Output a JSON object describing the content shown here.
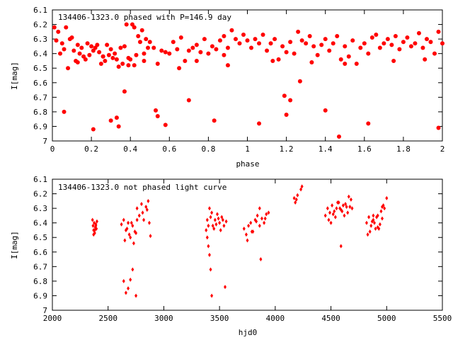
{
  "chart_data": [
    {
      "type": "scatter",
      "title": "134406-1323.0 phased with P=146.9 day",
      "xlabel": "phase",
      "ylabel": "I[mag]",
      "xlim": [
        0,
        2
      ],
      "ylim": [
        6.1,
        7
      ],
      "y_inverted": true,
      "grid": false,
      "marker_color": "#ff0000",
      "marker": "filled-circle",
      "x_ticks": [
        "0",
        "0.2",
        "0.4",
        "0.6",
        "0.8",
        "1",
        "1.2",
        "1.4",
        "1.6",
        "1.8",
        "2"
      ],
      "y_ticks": [
        "6.1",
        "6.2",
        "6.3",
        "6.4",
        "6.5",
        "6.6",
        "6.7",
        "6.8",
        "6.9",
        "7"
      ],
      "series": [
        {
          "x": [
            0.01,
            0.02,
            0.03,
            0.04,
            0.05,
            0.06,
            0.07,
            0.08,
            0.09,
            0.1,
            0.11,
            0.12,
            0.13,
            0.14,
            0.15,
            0.16,
            0.17,
            0.18,
            0.19,
            0.2,
            0.21,
            0.22,
            0.23,
            0.24,
            0.25,
            0.26,
            0.27,
            0.28,
            0.29,
            0.3,
            0.31,
            0.32,
            0.33,
            0.34,
            0.35,
            0.36,
            0.37,
            0.38,
            0.39,
            0.4,
            0.41,
            0.42,
            0.43,
            0.44,
            0.45,
            0.46,
            0.47,
            0.48,
            0.49,
            0.5,
            0.52,
            0.54,
            0.56,
            0.58,
            0.6,
            0.62,
            0.64,
            0.66,
            0.68,
            0.7,
            0.72,
            0.74,
            0.76,
            0.78,
            0.8,
            0.82,
            0.84,
            0.86,
            0.88,
            0.9,
            0.92,
            0.94,
            0.96,
            0.98,
            1.0,
            1.02,
            1.04,
            1.06,
            1.08,
            1.1,
            1.12,
            1.14,
            1.16,
            1.18,
            1.2,
            1.22,
            1.24,
            1.26,
            1.28,
            1.3,
            1.32,
            1.34,
            1.36,
            1.38,
            1.4,
            1.42,
            1.44,
            1.46,
            1.48,
            1.5,
            1.52,
            1.54,
            1.56,
            1.58,
            1.6,
            1.62,
            1.64,
            1.66,
            1.68,
            1.7,
            1.72,
            1.74,
            1.76,
            1.78,
            1.8,
            1.82,
            1.84,
            1.86,
            1.88,
            1.9,
            1.92,
            1.94,
            1.96,
            1.98,
            2.0,
            0.06,
            0.21,
            0.3,
            0.33,
            0.34,
            0.37,
            0.39,
            0.53,
            0.54,
            0.58,
            0.7,
            0.83,
            0.88,
            1.06,
            1.19,
            1.2,
            1.22,
            1.27,
            1.4,
            1.47,
            1.62,
            1.98,
            0.13,
            0.26,
            0.42,
            0.47,
            0.65,
            0.74,
            0.9,
            1.13,
            1.33,
            1.5,
            1.75,
            1.91
          ],
          "y": [
            6.22,
            6.31,
            6.25,
            6.4,
            6.33,
            6.37,
            6.22,
            6.5,
            6.3,
            6.29,
            6.38,
            6.45,
            6.34,
            6.4,
            6.36,
            6.42,
            6.44,
            6.33,
            6.41,
            6.35,
            6.38,
            6.36,
            6.34,
            6.39,
            6.47,
            6.42,
            6.45,
            6.34,
            6.41,
            6.37,
            6.43,
            6.4,
            6.44,
            6.49,
            6.36,
            6.47,
            6.35,
            6.2,
            6.43,
            6.44,
            6.2,
            6.22,
            6.41,
            6.28,
            6.32,
            6.24,
            6.4,
            6.3,
            6.36,
            6.32,
            6.36,
            6.47,
            6.38,
            6.39,
            6.4,
            6.32,
            6.37,
            6.29,
            6.45,
            6.38,
            6.36,
            6.34,
            6.39,
            6.3,
            6.4,
            6.35,
            6.37,
            6.31,
            6.28,
            6.36,
            6.24,
            6.3,
            6.33,
            6.27,
            6.31,
            6.36,
            6.3,
            6.33,
            6.27,
            6.38,
            6.33,
            6.3,
            6.44,
            6.35,
            6.39,
            6.32,
            6.4,
            6.25,
            6.31,
            6.33,
            6.28,
            6.35,
            6.41,
            6.34,
            6.3,
            6.38,
            6.33,
            6.28,
            6.44,
            6.35,
            6.42,
            6.31,
            6.47,
            6.36,
            6.33,
            6.4,
            6.29,
            6.27,
            6.36,
            6.33,
            6.3,
            6.34,
            6.28,
            6.37,
            6.32,
            6.29,
            6.35,
            6.33,
            6.26,
            6.36,
            6.3,
            6.32,
            6.4,
            6.25,
            6.33,
            6.8,
            6.92,
            6.86,
            6.84,
            6.9,
            6.66,
            6.48,
            6.79,
            6.83,
            6.89,
            6.72,
            6.86,
            6.41,
            6.88,
            6.69,
            6.82,
            6.72,
            6.59,
            6.79,
            6.97,
            6.88,
            6.91,
            6.46,
            6.42,
            6.48,
            6.45,
            6.5,
            6.45,
            6.48,
            6.45,
            6.46,
            6.47,
            6.45,
            6.44
          ]
        }
      ]
    },
    {
      "type": "scatter",
      "title": "134406-1323.0 not phased light curve",
      "xlabel": "hjd0",
      "ylabel": "I[mag]",
      "xlim": [
        2000,
        5500
      ],
      "ylim": [
        6.1,
        7
      ],
      "y_inverted": true,
      "grid": false,
      "marker_color": "#ff0000",
      "marker": "diamond",
      "x_ticks": [
        "2000",
        "2500",
        "3000",
        "3500",
        "4000",
        "4500",
        "5000",
        "5500"
      ],
      "y_ticks": [
        "6.1",
        "6.2",
        "6.3",
        "6.4",
        "6.5",
        "6.6",
        "6.7",
        "6.8",
        "6.9",
        "7"
      ],
      "series": [
        {
          "x": [
            2360,
            2365,
            2370,
            2375,
            2380,
            2385,
            2390,
            2395,
            2400,
            2370,
            2380,
            2390,
            2620,
            2640,
            2660,
            2680,
            2700,
            2720,
            2740,
            2760,
            2780,
            2650,
            2670,
            2690,
            2710,
            2730,
            2750,
            2640,
            2660,
            2680,
            2700,
            2720,
            2750,
            2760,
            2800,
            2820,
            2840,
            2860,
            2880,
            2810,
            2850,
            2870,
            3380,
            3390,
            3400,
            3410,
            3420,
            3440,
            3460,
            3480,
            3500,
            3520,
            3540,
            3560,
            3430,
            3450,
            3470,
            3490,
            3510,
            3530,
            3390,
            3400,
            3410,
            3420,
            3430,
            3550,
            3720,
            3740,
            3760,
            3780,
            3800,
            3820,
            3840,
            3860,
            3880,
            3900,
            3920,
            3940,
            3750,
            3790,
            3830,
            3870,
            3910,
            3860,
            4170,
            4180,
            4190,
            4200,
            4230,
            4240,
            4450,
            4470,
            4490,
            4510,
            4530,
            4550,
            4570,
            4590,
            4610,
            4630,
            4650,
            4670,
            4690,
            4480,
            4520,
            4560,
            4600,
            4640,
            4680,
            4500,
            4540,
            4580,
            4620,
            4660,
            4590,
            4820,
            4840,
            4860,
            4880,
            4900,
            4920,
            4940,
            4960,
            4980,
            5000,
            4850,
            4870,
            4890,
            4910,
            4930,
            4950,
            4970,
            4830,
            4880,
            4920,
            4960
          ],
          "y": [
            6.38,
            6.42,
            6.45,
            6.4,
            6.47,
            6.43,
            6.41,
            6.44,
            6.39,
            6.48,
            6.45,
            6.42,
            6.41,
            6.38,
            6.45,
            6.4,
            6.5,
            6.42,
            6.46,
            6.38,
            6.35,
            6.52,
            6.44,
            6.48,
            6.4,
            6.54,
            6.47,
            6.8,
            6.88,
            6.85,
            6.79,
            6.72,
            6.9,
            6.3,
            6.27,
            6.38,
            6.29,
            6.25,
            6.49,
            6.33,
            6.31,
            6.4,
            6.45,
            6.38,
            6.42,
            6.3,
            6.36,
            6.42,
            6.38,
            6.34,
            6.4,
            6.36,
            6.42,
            6.39,
            6.33,
            6.44,
            6.41,
            6.37,
            6.45,
            6.38,
            6.5,
            6.56,
            6.62,
            6.72,
            6.9,
            6.84,
            6.44,
            6.48,
            6.42,
            6.4,
            6.46,
            6.38,
            6.35,
            6.42,
            6.37,
            6.4,
            6.34,
            6.33,
            6.52,
            6.46,
            6.39,
            6.65,
            6.37,
            6.3,
            6.23,
            6.26,
            6.24,
            6.21,
            6.17,
            6.15,
            6.35,
            6.3,
            6.33,
            6.28,
            6.32,
            6.3,
            6.26,
            6.31,
            6.28,
            6.27,
            6.33,
            6.29,
            6.3,
            6.38,
            6.34,
            6.26,
            6.32,
            6.29,
            6.24,
            6.4,
            6.36,
            6.3,
            6.35,
            6.22,
            6.56,
            6.4,
            6.36,
            6.42,
            6.38,
            6.44,
            6.35,
            6.41,
            6.37,
            6.3,
            6.23,
            6.46,
            6.39,
            6.4,
            6.36,
            6.44,
            6.32,
            6.28,
            6.48,
            6.35,
            6.43,
            6.29
          ]
        }
      ]
    }
  ]
}
